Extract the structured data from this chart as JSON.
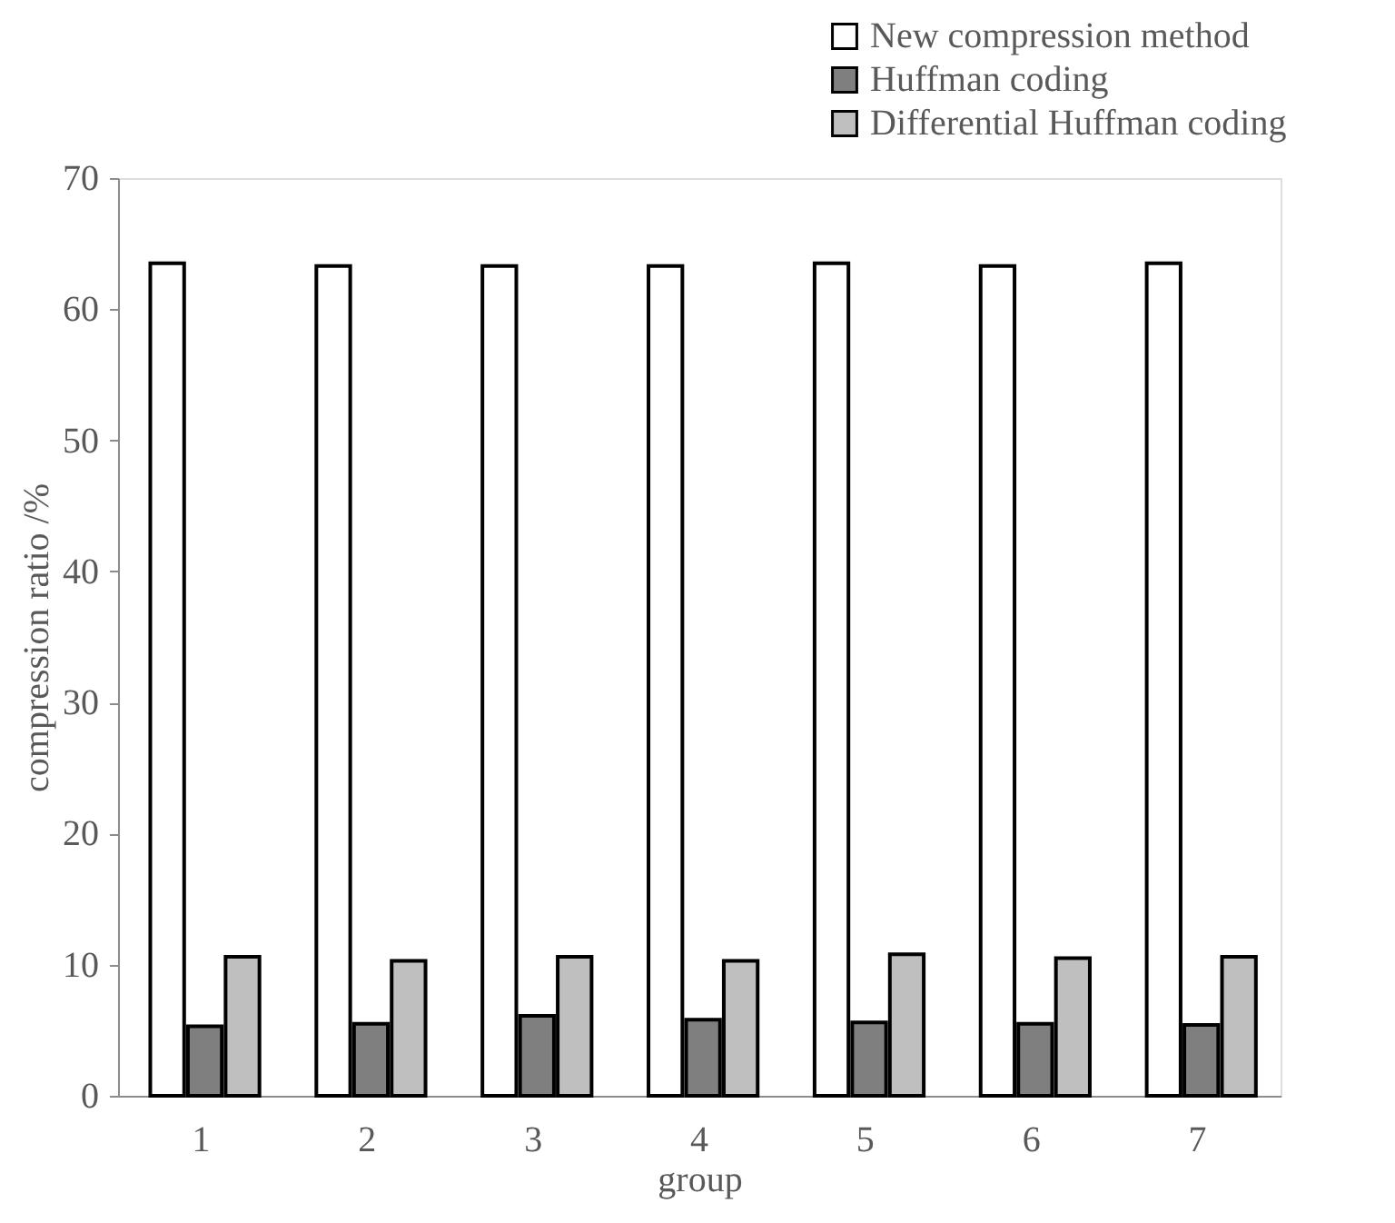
{
  "chart_data": {
    "type": "bar",
    "xlabel": "group",
    "ylabel": "compression ratio /%",
    "categories": [
      "1",
      "2",
      "3",
      "4",
      "5",
      "6",
      "7"
    ],
    "series": [
      {
        "name": "New compression method",
        "color": "#ffffff",
        "values": [
          63.5,
          63.3,
          63.3,
          63.3,
          63.5,
          63.3,
          63.5
        ]
      },
      {
        "name": "Huffman coding",
        "color": "#7f7f7f",
        "values": [
          5.3,
          5.5,
          6.1,
          5.8,
          5.6,
          5.5,
          5.4
        ]
      },
      {
        "name": "Differential Huffman coding",
        "color": "#bfbfbf",
        "values": [
          10.6,
          10.3,
          10.6,
          10.3,
          10.8,
          10.5,
          10.6
        ]
      }
    ],
    "ylim": [
      0,
      70
    ],
    "yticks": [
      0,
      10,
      20,
      30,
      40,
      50,
      60,
      70
    ],
    "grid": false,
    "legend": "top right"
  }
}
